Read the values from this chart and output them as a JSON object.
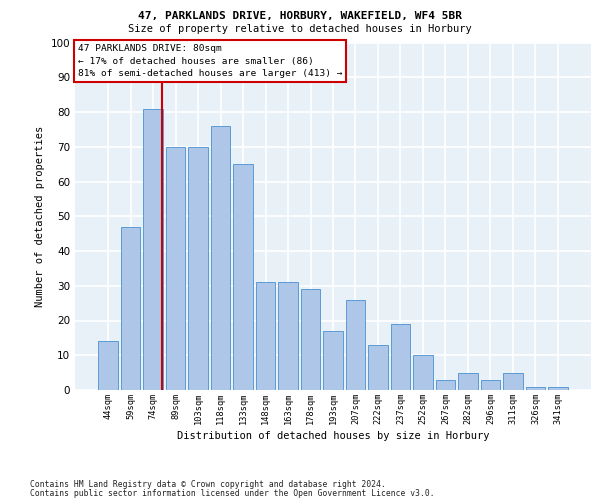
{
  "title1": "47, PARKLANDS DRIVE, HORBURY, WAKEFIELD, WF4 5BR",
  "title2": "Size of property relative to detached houses in Horbury",
  "xlabel": "Distribution of detached houses by size in Horbury",
  "ylabel": "Number of detached properties",
  "categories": [
    "44sqm",
    "59sqm",
    "74sqm",
    "89sqm",
    "103sqm",
    "118sqm",
    "133sqm",
    "148sqm",
    "163sqm",
    "178sqm",
    "193sqm",
    "207sqm",
    "222sqm",
    "237sqm",
    "252sqm",
    "267sqm",
    "282sqm",
    "296sqm",
    "311sqm",
    "326sqm",
    "341sqm"
  ],
  "values": [
    14,
    47,
    81,
    70,
    70,
    76,
    65,
    31,
    31,
    29,
    17,
    26,
    13,
    19,
    10,
    3,
    5,
    3,
    5,
    1,
    1
  ],
  "bar_color": "#aec6e8",
  "bar_edgecolor": "#5b9bd5",
  "background_color": "#e8f0f8",
  "grid_color": "#ffffff",
  "ylim": [
    0,
    100
  ],
  "yticks": [
    0,
    10,
    20,
    30,
    40,
    50,
    60,
    70,
    80,
    90,
    100
  ],
  "vline_x": 2.42,
  "vline_color": "#cc0000",
  "annotation_text": "47 PARKLANDS DRIVE: 80sqm\n← 17% of detached houses are smaller (86)\n81% of semi-detached houses are larger (413) →",
  "annotation_box_facecolor": "#ffffff",
  "annotation_box_edgecolor": "#cc0000",
  "footer1": "Contains HM Land Registry data © Crown copyright and database right 2024.",
  "footer2": "Contains public sector information licensed under the Open Government Licence v3.0."
}
